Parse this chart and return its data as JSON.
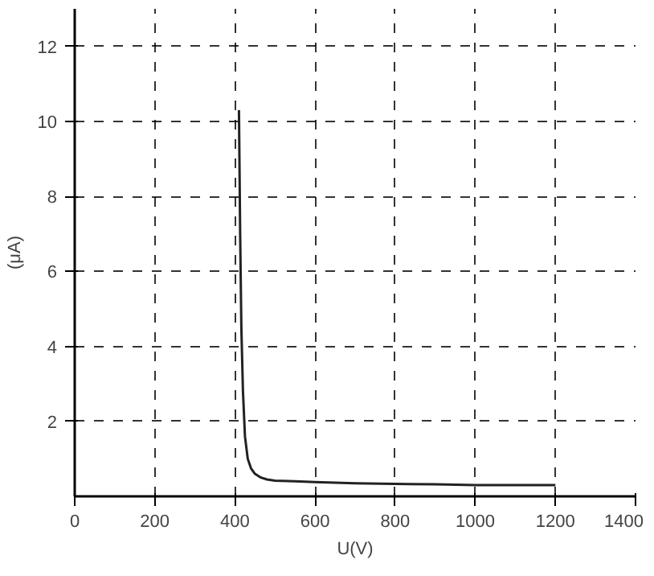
{
  "chart_data": {
    "type": "line",
    "xlabel": "U(V)",
    "ylabel": "(μA)",
    "x": [
      410,
      413,
      416,
      420,
      425,
      432,
      440,
      450,
      465,
      480,
      500,
      550,
      600,
      700,
      800,
      900,
      1000,
      1100,
      1200
    ],
    "values": [
      10.3,
      7,
      4.5,
      2.8,
      1.6,
      1.0,
      0.75,
      0.6,
      0.5,
      0.45,
      0.42,
      0.4,
      0.38,
      0.35,
      0.33,
      0.32,
      0.3,
      0.3,
      0.3
    ],
    "color": "#222222",
    "xlim": [
      0,
      1400
    ],
    "ylim": [
      0,
      13
    ],
    "xticks": [
      0,
      200,
      400,
      600,
      800,
      1000,
      1200,
      1400
    ],
    "yticks": [
      2,
      4,
      6,
      8,
      10,
      12
    ],
    "grid": true,
    "marker": "none",
    "line_style": "solid"
  }
}
